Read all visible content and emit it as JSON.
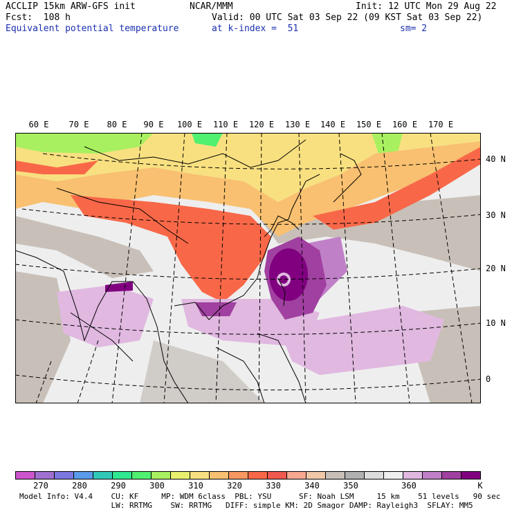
{
  "header": {
    "model": "ACCLIP 15km ARW-GFS init",
    "fcst": "Fcst:  108 h",
    "field": "Equivalent potential temperature",
    "center": "NCAR/MMM",
    "valid": "Valid: 00 UTC Sat 03 Sep 22 (09 KST Sat 03 Sep 22)",
    "level": "at k-index =  51",
    "init": "Init: 12 UTC Mon 29 Aug 22",
    "smoothing": "sm= 2"
  },
  "map": {
    "lon_labels": [
      "60 E",
      "70 E",
      "80 E",
      "90 E",
      "100 E",
      "110 E",
      "120 E",
      "130 E",
      "140 E",
      "150 E",
      "160 E",
      "170 E"
    ],
    "lat_labels": [
      "40 N",
      "30 N",
      "20 N",
      "10 N",
      "0"
    ],
    "typhoon_center": {
      "lon": 132,
      "lat": 23
    }
  },
  "colorbar": {
    "unit": "K",
    "ticks": [
      "270",
      "280",
      "290",
      "300",
      "310",
      "320",
      "330",
      "340",
      "350",
      "360"
    ],
    "colors": [
      "#cc55cc",
      "#a070d0",
      "#7c78e0",
      "#5a9ae8",
      "#30c8b8",
      "#30e890",
      "#50f070",
      "#a8f060",
      "#e8f070",
      "#f8e080",
      "#f8c070",
      "#f89860",
      "#f86848",
      "#f05850",
      "#f8a890",
      "#f0c8a8",
      "#c8c0b8",
      "#b0b0b0",
      "#dcdcdc",
      "#eeeeee",
      "#e0b8e0",
      "#c080c8",
      "#a040a0",
      "#800080"
    ]
  },
  "footer": {
    "line1": "Model Info: V4.4    CU: KF     MP: WDM 6class  PBL: YSU      SF: Noah LSM     15 km    51 levels   90 sec",
    "line2": "                    LW: RRTMG    SW: RRTMG   DIFF: simple KM: 2D Smagor DAMP: Rayleigh3  SFLAY: MM5"
  }
}
